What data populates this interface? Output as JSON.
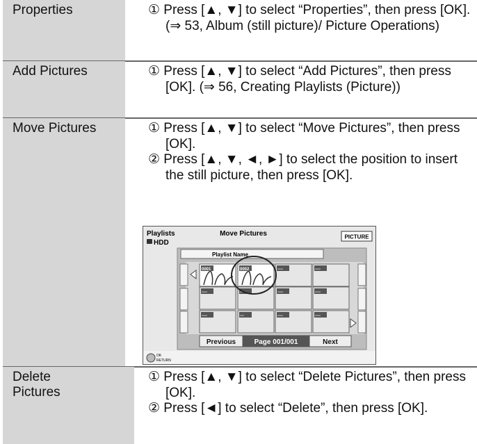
{
  "rows": [
    {
      "label": "Properties",
      "steps": [
        "① Press [▲, ▼] to select “Properties”, then press [OK]. (⇒ 53, Album (still picture)/ Picture Operations)"
      ]
    },
    {
      "label": "Add Pictures",
      "steps": [
        "① Press [▲, ▼] to select “Add Pictures”, then press [OK]. (⇒ 56, Creating Playlists (Picture))"
      ]
    },
    {
      "label": "Move Pictures",
      "steps": [
        "① Press [▲, ▼] to select “Move Pictures”, then press [OK].",
        "② Press [▲, ▼, ◄, ►] to select the position to insert the still picture, then press [OK]."
      ]
    },
    {
      "label": "Delete Pictures",
      "steps": [
        "① Press [▲, ▼] to select “Delete Pictures”, then press [OK].",
        "② Press [◄] to select “Delete”, then press [OK]."
      ]
    }
  ],
  "screen": {
    "title": "Playlists",
    "drive": "HDD",
    "heading": "Move Pictures",
    "badge": "PICTURE",
    "column_label": "Playlist Name",
    "tiles": [
      "0001",
      "0002",
      "----",
      "----",
      "----",
      "---",
      "----",
      "----",
      "----",
      "---",
      "----",
      "----"
    ],
    "buttons": [
      "Previous",
      "Page 001/001",
      "Next"
    ],
    "keys": [
      "OK",
      "RETURN"
    ]
  }
}
